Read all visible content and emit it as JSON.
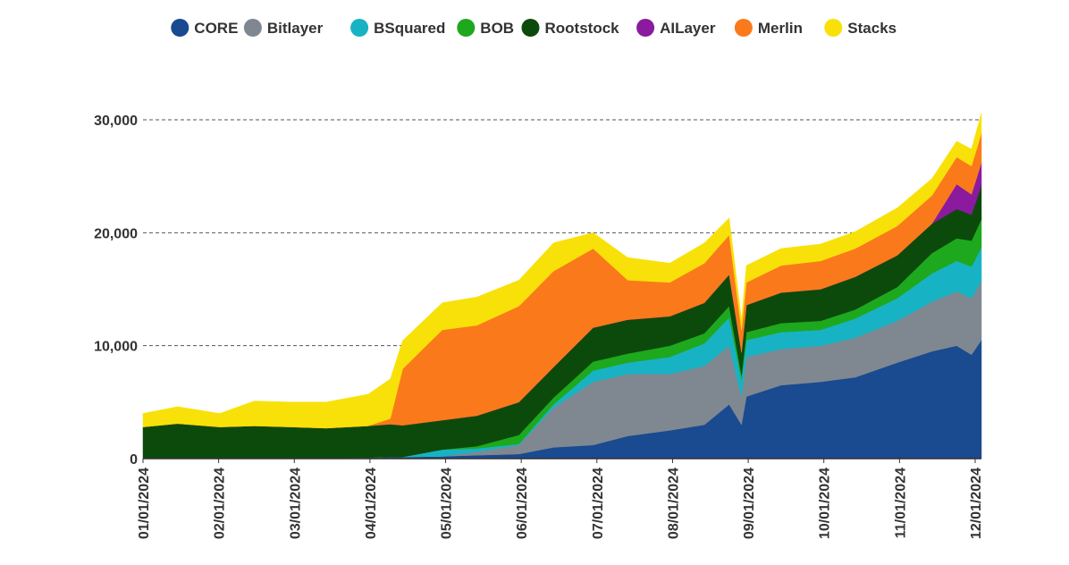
{
  "chart_data": {
    "type": "area",
    "stacked": true,
    "title": "",
    "xlabel": "",
    "ylabel": "",
    "ylim": [
      0,
      30000
    ],
    "y_ticks": [
      0,
      10000,
      20000,
      30000
    ],
    "y_tick_labels": [
      "0",
      "10,000",
      "20,000",
      "30,000"
    ],
    "x_tick_labels": [
      "01/01/2024",
      "02/01/2024",
      "03/01/2024",
      "04/01/2024",
      "05/01/2024",
      "06/01/2024",
      "07/01/2024",
      "08/01/2024",
      "09/01/2024",
      "10/01/2024",
      "11/01/2024",
      "12/01/2024"
    ],
    "grid": "horizontal dashed",
    "legend_position": "top",
    "x": [
      "2024-01-01",
      "2024-01-15",
      "2024-02-01",
      "2024-02-15",
      "2024-03-01",
      "2024-03-15",
      "2024-04-01",
      "2024-04-10",
      "2024-04-15",
      "2024-05-01",
      "2024-05-15",
      "2024-06-01",
      "2024-06-15",
      "2024-07-01",
      "2024-07-15",
      "2024-08-01",
      "2024-08-15",
      "2024-08-25",
      "2024-08-30",
      "2024-09-01",
      "2024-09-15",
      "2024-10-01",
      "2024-10-15",
      "2024-11-01",
      "2024-11-15",
      "2024-11-25",
      "2024-12-01",
      "2024-12-05"
    ],
    "series": [
      {
        "name": "CORE",
        "color": "#1a4a8f",
        "values": [
          0,
          0,
          0,
          0,
          0,
          0,
          100,
          150,
          150,
          200,
          300,
          400,
          1000,
          1200,
          2000,
          2500,
          3000,
          4800,
          3000,
          5500,
          6500,
          6800,
          7200,
          8500,
          9500,
          10000,
          9200,
          10500
        ]
      },
      {
        "name": "Bitlayer",
        "color": "#7f8891",
        "values": [
          0,
          0,
          0,
          0,
          0,
          0,
          0,
          0,
          0,
          0,
          300,
          800,
          3500,
          5600,
          5500,
          5000,
          5200,
          5200,
          2500,
          3500,
          3200,
          3200,
          3500,
          3700,
          4400,
          4800,
          5000,
          5200
        ]
      },
      {
        "name": "BSquared",
        "color": "#17b3c4",
        "values": [
          0,
          0,
          0,
          0,
          0,
          0,
          0,
          0,
          0,
          600,
          300,
          100,
          300,
          1000,
          1000,
          1500,
          2000,
          2500,
          1500,
          1500,
          1500,
          1400,
          1700,
          2000,
          2500,
          2700,
          2800,
          3000
        ]
      },
      {
        "name": "BOB",
        "color": "#1ea81e",
        "values": [
          0,
          0,
          0,
          0,
          0,
          0,
          0,
          0,
          0,
          0,
          200,
          800,
          600,
          800,
          800,
          1000,
          900,
          1000,
          400,
          700,
          800,
          800,
          800,
          1000,
          1800,
          2000,
          2300,
          2500
        ]
      },
      {
        "name": "Rootstock",
        "color": "#0c4a0c",
        "values": [
          2800,
          3100,
          2800,
          2900,
          2800,
          2700,
          2800,
          2900,
          2800,
          2600,
          2700,
          2900,
          2700,
          3000,
          3000,
          2600,
          2700,
          2800,
          2000,
          2400,
          2700,
          2800,
          2900,
          2800,
          2600,
          2600,
          2300,
          3000
        ]
      },
      {
        "name": "AILayer",
        "color": "#8b1a9e",
        "values": [
          0,
          0,
          0,
          0,
          0,
          0,
          0,
          0,
          0,
          0,
          0,
          0,
          0,
          0,
          0,
          0,
          0,
          0,
          0,
          0,
          0,
          0,
          0,
          0,
          0,
          2200,
          1800,
          2000
        ]
      },
      {
        "name": "Merlin",
        "color": "#fa7a1b",
        "values": [
          0,
          0,
          0,
          0,
          0,
          0,
          0,
          500,
          5000,
          8000,
          8000,
          8500,
          8500,
          7000,
          3500,
          3000,
          3500,
          3500,
          2000,
          2000,
          2400,
          2500,
          2500,
          2600,
          2500,
          2400,
          2500,
          2600
        ]
      },
      {
        "name": "Stacks",
        "color": "#f8e108",
        "values": [
          1200,
          1500,
          1200,
          2200,
          2200,
          2300,
          2800,
          3500,
          2500,
          2400,
          2500,
          2300,
          2500,
          1400,
          2000,
          1700,
          1800,
          1500,
          900,
          1500,
          1500,
          1500,
          1500,
          1600,
          1500,
          1400,
          1500,
          1800
        ]
      }
    ]
  }
}
